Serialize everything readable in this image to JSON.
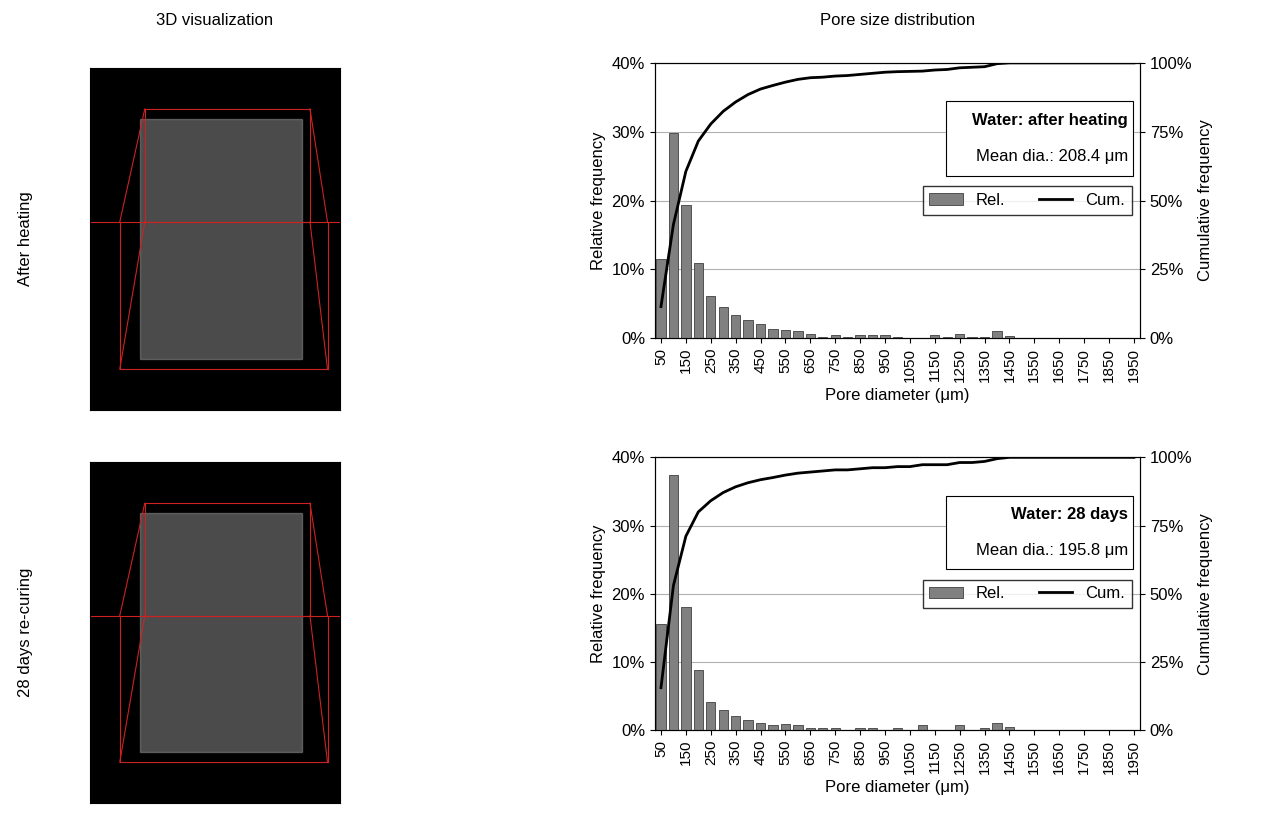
{
  "column_titles": [
    "3D visualization",
    "Pore size distribution"
  ],
  "row_labels": [
    "After heating",
    "28 days re-curing"
  ],
  "chart_data": [
    {
      "type": "bar",
      "annotations": [
        "Water: after heating",
        "Mean dia.: 208.4 μm"
      ],
      "x_label": "Pore diameter (μm)",
      "y_label": "Relative frequency",
      "y2_label": "Cumulative frequency",
      "categories": [
        "50",
        null,
        "150",
        null,
        "250",
        null,
        "350",
        null,
        "450",
        null,
        "550",
        null,
        "650",
        null,
        "750",
        null,
        "850",
        null,
        "950",
        null,
        "1050",
        null,
        "1150",
        null,
        "1250",
        null,
        "1350",
        null,
        "1450",
        null,
        "1550",
        null,
        "1650",
        null,
        "1750",
        null,
        "1850",
        null,
        "1950"
      ],
      "series": [
        {
          "name": "Rel.",
          "type": "bar",
          "color": "#808080",
          "values": [
            11.5,
            29.8,
            19.3,
            11.0,
            6.2,
            4.6,
            3.4,
            2.7,
            2.0,
            1.3,
            1.2,
            1.0,
            0.6,
            0.2,
            0.4,
            0.2,
            0.4,
            0.4,
            0.4,
            0.2,
            0.1,
            0.1,
            0.4,
            0.2,
            0.6,
            0.2,
            0.2,
            1.1,
            0.3,
            0,
            0,
            0,
            0,
            0,
            0,
            0,
            0,
            0,
            0
          ]
        },
        {
          "name": "Cum.",
          "type": "line",
          "color": "#000000",
          "axis": "y2",
          "values": [
            11.5,
            41.3,
            60.6,
            71.6,
            77.8,
            82.4,
            85.8,
            88.5,
            90.5,
            91.8,
            93.0,
            94.0,
            94.6,
            94.8,
            95.2,
            95.4,
            95.8,
            96.2,
            96.6,
            96.8,
            96.9,
            97.0,
            97.4,
            97.6,
            98.2,
            98.4,
            98.6,
            99.7,
            100,
            100,
            100,
            100,
            100,
            100,
            100,
            100,
            100,
            100,
            100
          ]
        }
      ],
      "ylim": [
        0,
        40
      ],
      "yticks": [
        {
          "value": 0,
          "label": "0%"
        },
        {
          "value": 10,
          "label": "10%"
        },
        {
          "value": 20,
          "label": "20%"
        },
        {
          "value": 30,
          "label": "30%"
        },
        {
          "value": 40,
          "label": "40%"
        }
      ],
      "y2lim": [
        0,
        100
      ],
      "y2ticks": [
        {
          "value": 0,
          "label": "0%"
        },
        {
          "value": 25,
          "label": "25%"
        },
        {
          "value": 50,
          "label": "50%"
        },
        {
          "value": 75,
          "label": "75%"
        },
        {
          "value": 100,
          "label": "100%"
        }
      ],
      "grid": true,
      "legend": "center right"
    },
    {
      "type": "bar",
      "annotations": [
        "Water: 28 days",
        "Mean dia.: 195.8 μm"
      ],
      "x_label": "Pore diameter (μm)",
      "y_label": "Relative frequency",
      "y2_label": "Cumulative frequency",
      "categories": [
        "50",
        null,
        "150",
        null,
        "250",
        null,
        "350",
        null,
        "450",
        null,
        "550",
        null,
        "650",
        null,
        "750",
        null,
        "850",
        null,
        "950",
        null,
        "1050",
        null,
        "1150",
        null,
        "1250",
        null,
        "1350",
        null,
        "1450",
        null,
        "1550",
        null,
        "1650",
        null,
        "1750",
        null,
        "1850",
        null,
        "1950"
      ],
      "series": [
        {
          "name": "Rel.",
          "type": "bar",
          "color": "#808080",
          "values": [
            15.6,
            37.4,
            18.1,
            8.9,
            4.1,
            3.0,
            2.1,
            1.5,
            1.1,
            0.8,
            0.9,
            0.7,
            0.4,
            0.4,
            0.4,
            0,
            0.4,
            0.4,
            0,
            0.4,
            0,
            0.7,
            0,
            0,
            0.8,
            0,
            0.4,
            1.0,
            0.5,
            0,
            0,
            0,
            0,
            0,
            0,
            0,
            0,
            0,
            0
          ]
        },
        {
          "name": "Cum.",
          "type": "line",
          "color": "#000000",
          "axis": "y2",
          "values": [
            15.6,
            53.0,
            71.1,
            80.0,
            84.1,
            87.1,
            89.2,
            90.7,
            91.8,
            92.6,
            93.5,
            94.2,
            94.6,
            95.0,
            95.4,
            95.4,
            95.8,
            96.2,
            96.2,
            96.6,
            96.6,
            97.3,
            97.3,
            97.3,
            98.1,
            98.1,
            98.5,
            99.5,
            100,
            100,
            100,
            100,
            100,
            100,
            100,
            100,
            100,
            100,
            100
          ]
        }
      ],
      "ylim": [
        0,
        40
      ],
      "yticks": [
        {
          "value": 0,
          "label": "0%"
        },
        {
          "value": 10,
          "label": "10%"
        },
        {
          "value": 20,
          "label": "20%"
        },
        {
          "value": 30,
          "label": "30%"
        },
        {
          "value": 40,
          "label": "40%"
        }
      ],
      "y2lim": [
        0,
        100
      ],
      "y2ticks": [
        {
          "value": 0,
          "label": "0%"
        },
        {
          "value": 25,
          "label": "25%"
        },
        {
          "value": 50,
          "label": "50%"
        },
        {
          "value": 75,
          "label": "75%"
        },
        {
          "value": 100,
          "label": "100%"
        }
      ],
      "grid": true,
      "legend": "center right"
    }
  ]
}
